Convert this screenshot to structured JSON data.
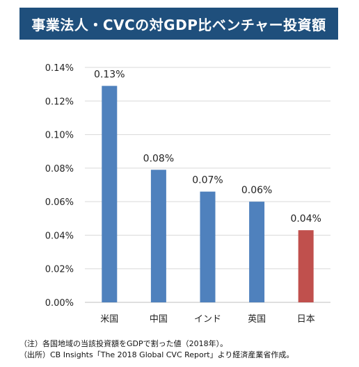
{
  "banner": {
    "title": "事業法人・CVCの対GDP比ベンチャー投資額"
  },
  "colors": {
    "banner_bg": "#1f4f7c",
    "bar_default": "#4f81bd",
    "bar_highlight": "#c0504d",
    "grid": "#d9d9d9"
  },
  "chart_data": {
    "type": "bar",
    "title": "",
    "xlabel": "",
    "ylabel": "",
    "categories": [
      "米国",
      "中国",
      "インド",
      "英国",
      "日本"
    ],
    "values": [
      0.13,
      0.08,
      0.07,
      0.06,
      0.04
    ],
    "plot_values": [
      0.129,
      0.079,
      0.066,
      0.06,
      0.043
    ],
    "value_labels": [
      "0.13%",
      "0.08%",
      "0.07%",
      "0.06%",
      "0.04%"
    ],
    "ylim": [
      0,
      0.14
    ],
    "yticks": [
      0,
      0.02,
      0.04,
      0.06,
      0.08,
      0.1,
      0.12,
      0.14
    ],
    "ytick_labels": [
      "0.00%",
      "0.02%",
      "0.04%",
      "0.06%",
      "0.08%",
      "0.10%",
      "0.12%",
      "0.14%"
    ],
    "highlight_index": 4,
    "grid": true,
    "legend": "none"
  },
  "notes": {
    "line1": "（注）各国地域の当該投資額をGDPで割った値（2018年）。",
    "line2": "（出所）CB Insights「The 2018 Global CVC Report」より経済産業省作成。"
  }
}
